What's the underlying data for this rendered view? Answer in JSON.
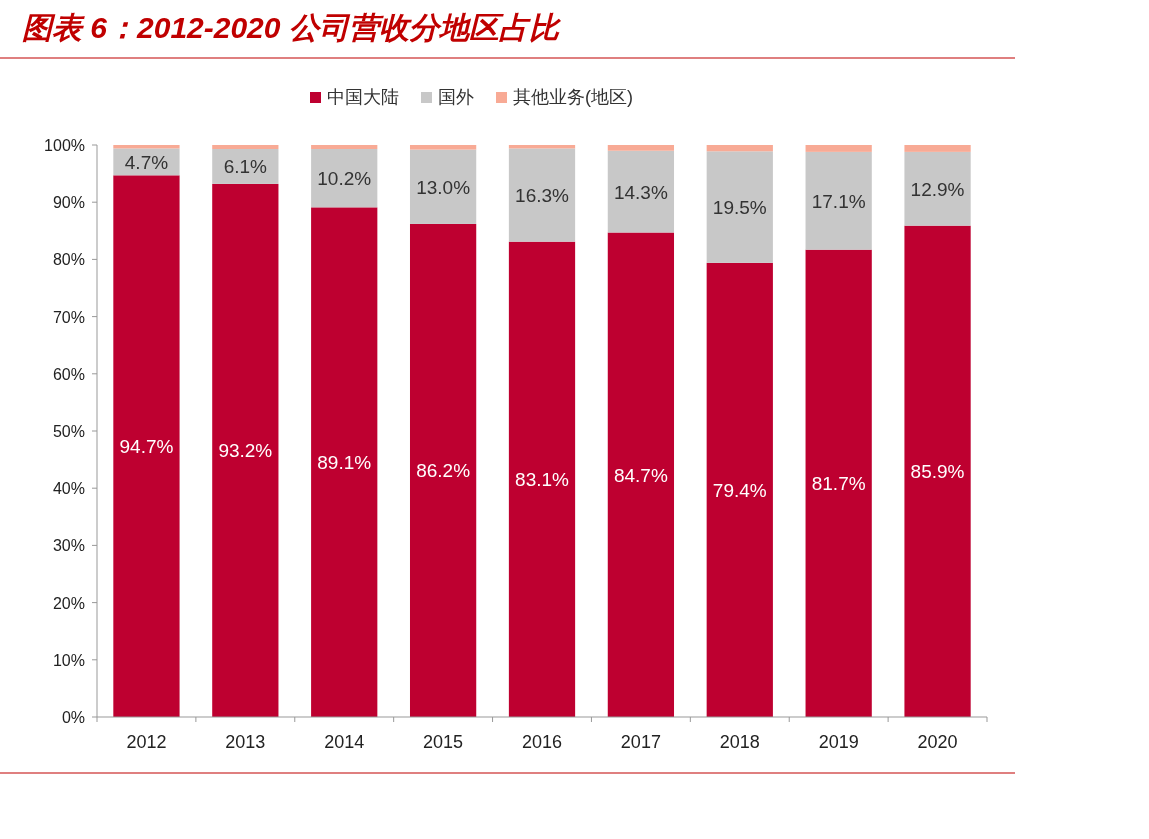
{
  "chart_data": {
    "type": "bar",
    "title": "图表 6：2012-2020 公司营收分地区占比",
    "stacked": true,
    "legend": "top",
    "categories": [
      "2012",
      "2013",
      "2014",
      "2015",
      "2016",
      "2017",
      "2018",
      "2019",
      "2020"
    ],
    "ylim": [
      0,
      100
    ],
    "yticks": [
      {
        "value": 0,
        "label": "0%"
      },
      {
        "value": 10,
        "label": "10%"
      },
      {
        "value": 20,
        "label": "20%"
      },
      {
        "value": 30,
        "label": "30%"
      },
      {
        "value": 40,
        "label": "40%"
      },
      {
        "value": 50,
        "label": "50%"
      },
      {
        "value": 60,
        "label": "60%"
      },
      {
        "value": 70,
        "label": "70%"
      },
      {
        "value": 80,
        "label": "80%"
      },
      {
        "value": 90,
        "label": "90%"
      },
      {
        "value": 100,
        "label": "100%"
      }
    ],
    "series": [
      {
        "name": "中国大陆",
        "color": "#be0030",
        "values": [
          94.7,
          93.2,
          89.1,
          86.2,
          83.1,
          84.7,
          79.4,
          81.7,
          85.9
        ],
        "value_labels": [
          "94.7%",
          "93.2%",
          "89.1%",
          "86.2%",
          "83.1%",
          "84.7%",
          "79.4%",
          "81.7%",
          "85.9%"
        ]
      },
      {
        "name": "国外",
        "color": "#c8c8c8",
        "values": [
          4.7,
          6.1,
          10.2,
          13.0,
          16.3,
          14.3,
          19.5,
          17.1,
          12.9
        ],
        "value_labels": [
          "4.7%",
          "6.1%",
          "10.2%",
          "13.0%",
          "16.3%",
          "14.3%",
          "19.5%",
          "17.1%",
          "12.9%"
        ]
      },
      {
        "name": "其他业务(地区)",
        "color": "#f8aa95",
        "values": [
          0.6,
          0.7,
          0.7,
          0.8,
          0.6,
          1.0,
          1.1,
          1.2,
          1.2
        ]
      }
    ]
  }
}
